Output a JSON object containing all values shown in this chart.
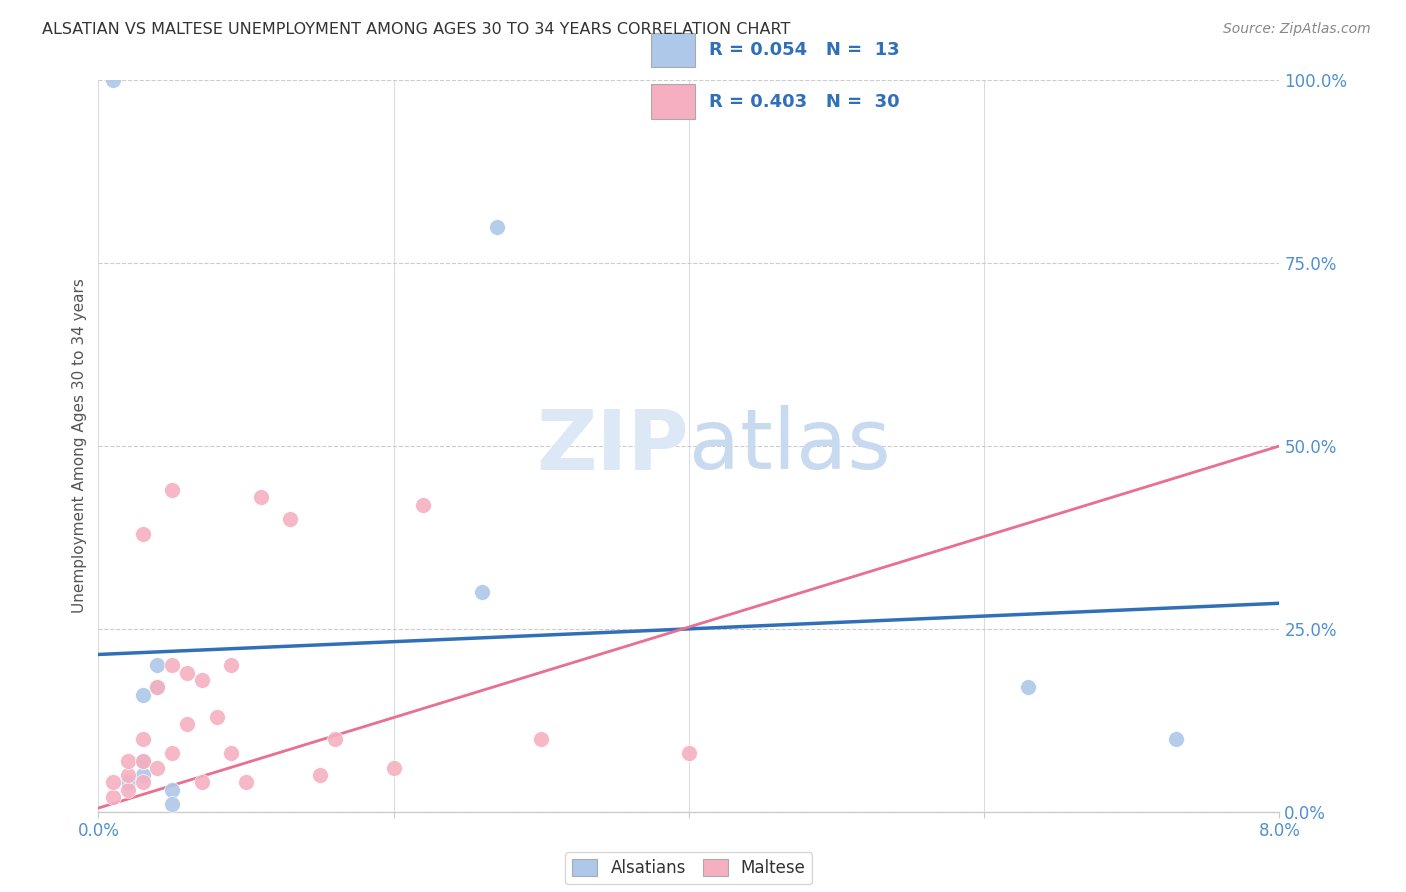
{
  "title": "ALSATIAN VS MALTESE UNEMPLOYMENT AMONG AGES 30 TO 34 YEARS CORRELATION CHART",
  "source": "Source: ZipAtlas.com",
  "ylabel": "Unemployment Among Ages 30 to 34 years",
  "xlim": [
    0.0,
    0.08
  ],
  "ylim": [
    0.0,
    1.0
  ],
  "xticks": [
    0.0,
    0.02,
    0.04,
    0.06,
    0.08
  ],
  "xticklabels": [
    "0.0%",
    "",
    "",
    "",
    "8.0%"
  ],
  "yticks_right": [
    0.0,
    0.25,
    0.5,
    0.75,
    1.0
  ],
  "ytick_labels_right": [
    "0.0%",
    "25.0%",
    "50.0%",
    "75.0%",
    "100.0%"
  ],
  "alsatian_R": 0.054,
  "alsatian_N": 13,
  "maltese_R": 0.403,
  "maltese_N": 30,
  "alsatian_color": "#adc8e8",
  "maltese_color": "#f5afc0",
  "alsatian_line_color": "#3070b8",
  "maltese_line_color": "#e87090",
  "grid_color": "#cccccc",
  "background_color": "#ffffff",
  "title_color": "#333333",
  "axis_tick_color": "#5090d0",
  "watermark_text": "ZIPatlas",
  "watermark_color": "#dce8f5",
  "legend_label_color": "#3070b8",
  "alsatian_x": [
    0.001,
    0.002,
    0.003,
    0.003,
    0.003,
    0.004,
    0.004,
    0.005,
    0.005,
    0.026,
    0.027,
    0.063,
    0.073
  ],
  "alsatian_y": [
    1.0,
    0.04,
    0.05,
    0.07,
    0.16,
    0.17,
    0.2,
    0.03,
    0.01,
    0.3,
    0.8,
    0.17,
    0.1
  ],
  "maltese_x": [
    0.001,
    0.001,
    0.002,
    0.002,
    0.002,
    0.003,
    0.003,
    0.003,
    0.003,
    0.004,
    0.004,
    0.005,
    0.005,
    0.005,
    0.006,
    0.006,
    0.007,
    0.007,
    0.008,
    0.009,
    0.009,
    0.01,
    0.011,
    0.013,
    0.015,
    0.016,
    0.02,
    0.022,
    0.03,
    0.04
  ],
  "maltese_y": [
    0.02,
    0.04,
    0.03,
    0.05,
    0.07,
    0.04,
    0.07,
    0.1,
    0.38,
    0.06,
    0.17,
    0.08,
    0.2,
    0.44,
    0.12,
    0.19,
    0.18,
    0.04,
    0.13,
    0.08,
    0.2,
    0.04,
    0.43,
    0.4,
    0.05,
    0.1,
    0.06,
    0.42,
    0.1,
    0.08
  ],
  "alsatian_trendline_x": [
    0.0,
    0.08
  ],
  "alsatian_trendline_y": [
    0.215,
    0.285
  ],
  "maltese_trendline_x": [
    0.0,
    0.08
  ],
  "maltese_trendline_y": [
    0.005,
    0.5
  ]
}
